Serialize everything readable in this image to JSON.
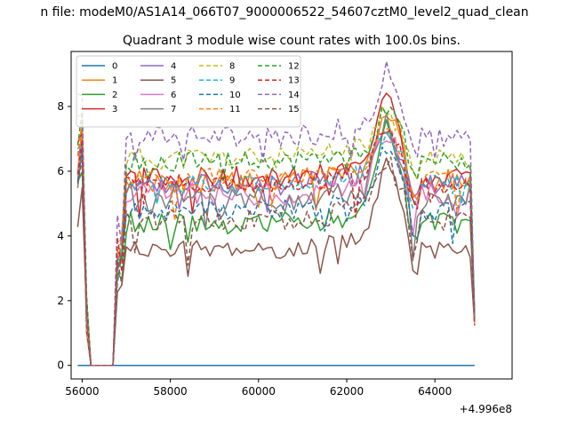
{
  "chart_data": {
    "type": "line",
    "suptitle": "n file: modeM0/AS1A14_066T07_9000006522_54607cztM0_level2_quad_clean",
    "title": "Quadrant 3 module wise count rates with 100.0s bins.",
    "xlabel": "",
    "ylabel": "",
    "x_offset_label": "+4.996e8",
    "xlim": [
      55750,
      65750
    ],
    "ylim": [
      -0.42,
      9.7
    ],
    "x_ticks": [
      56000,
      58000,
      60000,
      62000,
      64000
    ],
    "x_tick_labels": [
      "56000",
      "58000",
      "60000",
      "62000",
      "64000"
    ],
    "y_ticks": [
      0,
      2,
      4,
      6,
      8
    ],
    "y_tick_labels": [
      "0",
      "2",
      "4",
      "6",
      "8"
    ],
    "grid": false,
    "legend": {
      "placement": "top-left",
      "columns": 4
    },
    "x_profile": [
      55900,
      56000,
      56100,
      56200,
      56300,
      56700,
      56800,
      57000,
      57100,
      57500,
      58000,
      58500,
      59000,
      59500,
      60000,
      60500,
      61000,
      61500,
      62000,
      62500,
      62800,
      63000,
      63500,
      64000,
      64500,
      64800,
      64900
    ],
    "series": [
      {
        "name": "0",
        "color": "#1f77b4",
        "dash": "solid",
        "level": 0.0,
        "profile": "flat",
        "x": [
          55900,
          64900
        ],
        "y": [
          0,
          0
        ]
      },
      {
        "name": "1",
        "color": "#ff7f0e",
        "dash": "solid",
        "level": 5.7,
        "amp": 0.35,
        "peak": 1.8
      },
      {
        "name": "2",
        "color": "#2ca02c",
        "dash": "solid",
        "level": 4.4,
        "amp": 0.35,
        "peak": 2.7
      },
      {
        "name": "3",
        "color": "#d62728",
        "dash": "solid",
        "level": 5.8,
        "amp": 0.35,
        "peak": 2.4
      },
      {
        "name": "4",
        "color": "#9467bd",
        "dash": "solid",
        "level": 5.6,
        "amp": 0.35,
        "peak": 1.4
      },
      {
        "name": "5",
        "color": "#8c564b",
        "dash": "solid",
        "level": 3.6,
        "amp": 0.3,
        "peak": 2.4
      },
      {
        "name": "6",
        "color": "#e377c2",
        "dash": "solid",
        "level": 5.3,
        "amp": 0.35,
        "peak": 1.5
      },
      {
        "name": "7",
        "color": "#7f7f7f",
        "dash": "solid",
        "level": 5.2,
        "amp": 0.45,
        "peak": 2.0
      },
      {
        "name": "8",
        "color": "#bcbd22",
        "dash": "dashed",
        "level": 6.4,
        "amp": 0.35,
        "peak": 1.0
      },
      {
        "name": "9",
        "color": "#17becf",
        "dash": "dashed",
        "level": 5.6,
        "amp": 0.3,
        "peak": 1.2
      },
      {
        "name": "10",
        "color": "#1f77b4",
        "dash": "dashed",
        "level": 4.8,
        "amp": 0.35,
        "peak": 1.6
      },
      {
        "name": "11",
        "color": "#ff7f0e",
        "dash": "dashed",
        "level": 5.8,
        "amp": 0.3,
        "peak": 1.3
      },
      {
        "name": "12",
        "color": "#2ca02c",
        "dash": "dashed",
        "level": 6.3,
        "amp": 0.3,
        "peak": 1.2
      },
      {
        "name": "13",
        "color": "#d62728",
        "dash": "dashed",
        "level": 5.6,
        "amp": 0.3,
        "peak": 1.4
      },
      {
        "name": "14",
        "color": "#9467bd",
        "dash": "dashed",
        "level": 7.1,
        "amp": 0.35,
        "peak": 1.5
      },
      {
        "name": "15",
        "color": "#8c564b",
        "dash": "dashed",
        "level": 4.5,
        "amp": 0.35,
        "peak": 1.5
      }
    ]
  }
}
